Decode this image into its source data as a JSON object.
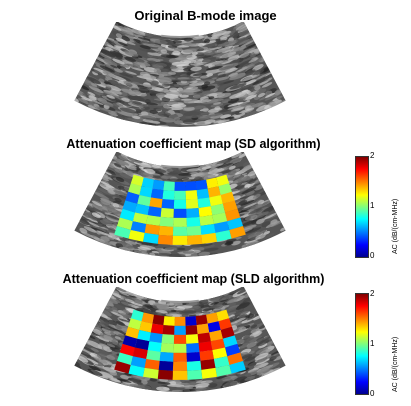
{
  "panels": [
    {
      "title": "Original B-mode image"
    },
    {
      "title": "Attenuation coefficient map (SD algorithm)"
    },
    {
      "title": "Attenuation coefficient map (SLD algorithm)"
    }
  ],
  "colorbar": {
    "max_label": "2",
    "mid_label": "1",
    "min_label": "0",
    "unit_label": "AC (dB/(cm-MHz)"
  },
  "colors": {
    "tissue_dark": "#1a1a1a",
    "tissue_light": "#bdbdbd",
    "cmap_low": "#0000ff",
    "cmap_mid": "#7fff7f",
    "cmap_high": "#ff0000"
  }
}
